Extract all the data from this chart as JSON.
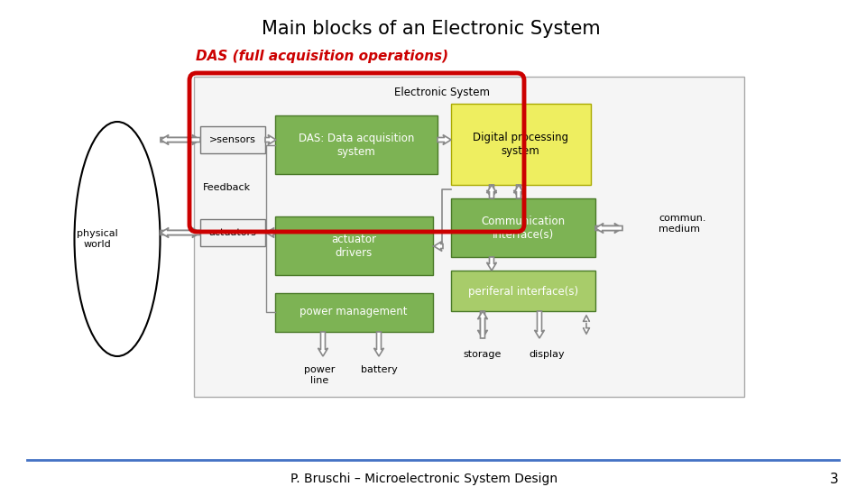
{
  "title": "Main blocks of an Electronic System",
  "subtitle": "DAS (full acquisition operations)",
  "subtitle_color": "#cc0000",
  "footer": "P. Bruschi – Microelectronic System Design",
  "page_number": "3",
  "bg_color": "#ffffff",
  "green_color": "#7db354",
  "yellow_color": "#eeee60",
  "light_green": "#a8cc6a",
  "red_border": "#cc0000",
  "gray_edge": "#888888",
  "dark_green_edge": "#4a7a28"
}
